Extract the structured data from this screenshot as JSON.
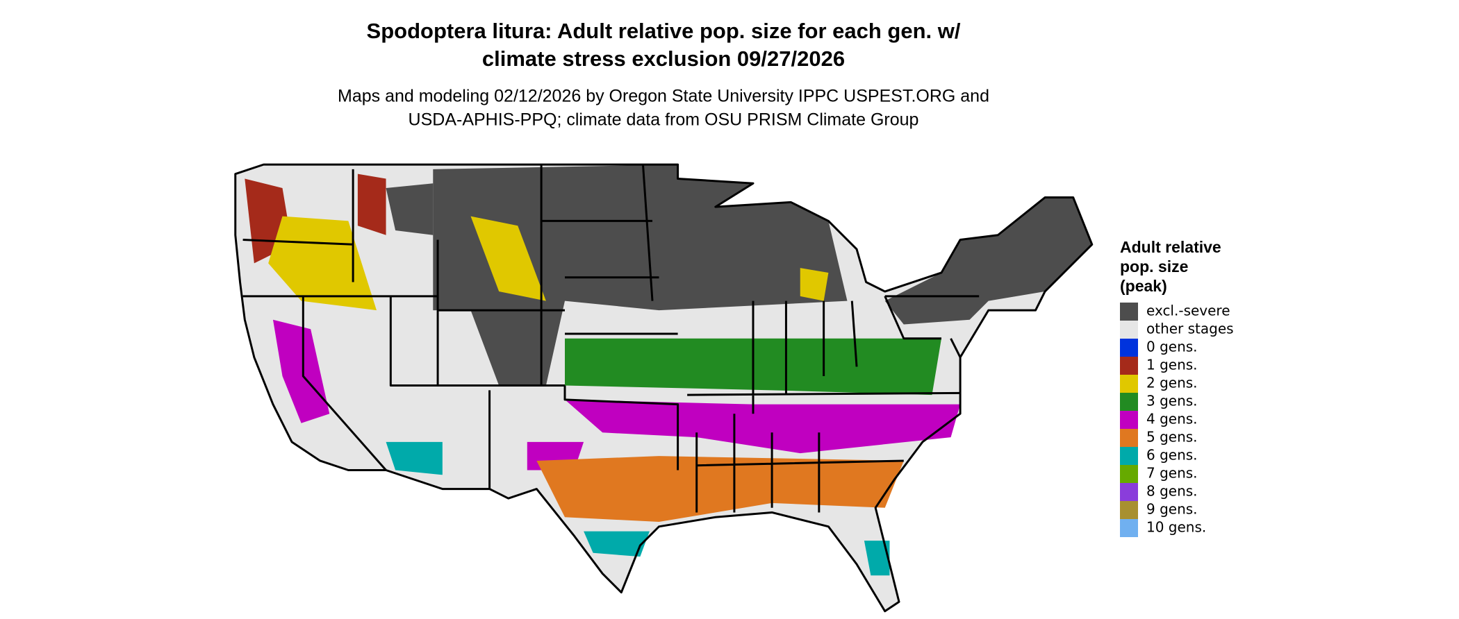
{
  "title": [
    "Spodoptera litura: Adult relative pop. size for each gen. w/",
    "climate stress exclusion 09/27/2026"
  ],
  "subtitle": [
    "Maps and modeling 02/12/2026 by Oregon State University IPPC USPEST.ORG and",
    "USDA-APHIS-PPQ; climate data from OSU PRISM Climate Group"
  ],
  "legend": {
    "title": [
      "Adult relative",
      "pop. size",
      "(peak)"
    ],
    "items": [
      {
        "label": "excl.-severe",
        "color": "#4d4d4d"
      },
      {
        "label": "other stages",
        "color": "#e6e6e6"
      },
      {
        "label": "0 gens.",
        "color": "#0033dd"
      },
      {
        "label": "1 gens.",
        "color": "#a52a1a"
      },
      {
        "label": "2 gens.",
        "color": "#e0c800"
      },
      {
        "label": "3 gens.",
        "color": "#228b22"
      },
      {
        "label": "4 gens.",
        "color": "#c000c0"
      },
      {
        "label": "5 gens.",
        "color": "#e07820"
      },
      {
        "label": "6 gens.",
        "color": "#00aaaa"
      },
      {
        "label": "7 gens.",
        "color": "#66aa00"
      },
      {
        "label": "8 gens.",
        "color": "#8a3ddb"
      },
      {
        "label": "9 gens.",
        "color": "#a89030"
      },
      {
        "label": "10 gens.",
        "color": "#70b0f0"
      }
    ]
  }
}
